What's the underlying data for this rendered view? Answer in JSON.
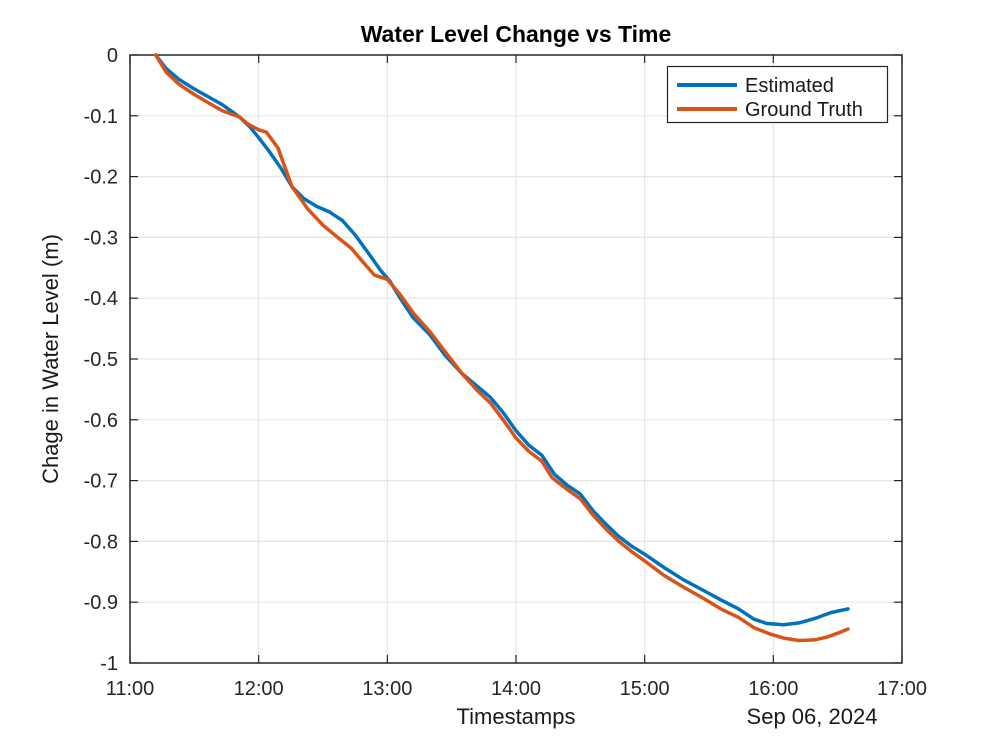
{
  "figure": {
    "background": "#ffffff",
    "axis_color": "#262626",
    "grid_color": "#e6e6e6"
  },
  "chart_data": {
    "type": "line",
    "title": "Water Level Change vs Time",
    "xlabel": "Timestamps",
    "ylabel": "Chage in Water Level (m)",
    "date_annotation": "Sep 06, 2024",
    "x_unit": "hours after 11:00 on Sep 06, 2024",
    "xlim": [
      0,
      6
    ],
    "ylim": [
      -1,
      0
    ],
    "grid": true,
    "x_ticks": {
      "values": [
        0,
        1,
        2,
        3,
        4,
        5,
        6
      ],
      "labels": [
        "11:00",
        "12:00",
        "13:00",
        "14:00",
        "15:00",
        "16:00",
        "17:00"
      ]
    },
    "y_ticks": {
      "values": [
        0,
        -0.1,
        -0.2,
        -0.3,
        -0.4,
        -0.5,
        -0.6,
        -0.7,
        -0.8,
        -0.9,
        -1
      ],
      "labels": [
        "0",
        "-0.1",
        "-0.2",
        "-0.3",
        "-0.4",
        "-0.5",
        "-0.6",
        "-0.7",
        "-0.8",
        "-0.9",
        "-1"
      ]
    },
    "legend": {
      "position": "northeast",
      "entries": [
        "Estimated",
        "Ground Truth"
      ]
    },
    "series": [
      {
        "name": "Estimated",
        "color": "#0072BD",
        "points": [
          [
            0.2,
            0.0
          ],
          [
            0.28,
            -0.022
          ],
          [
            0.38,
            -0.04
          ],
          [
            0.5,
            -0.056
          ],
          [
            0.62,
            -0.07
          ],
          [
            0.72,
            -0.082
          ],
          [
            0.8,
            -0.094
          ],
          [
            0.85,
            -0.102
          ],
          [
            0.93,
            -0.118
          ],
          [
            1.0,
            -0.136
          ],
          [
            1.08,
            -0.158
          ],
          [
            1.17,
            -0.185
          ],
          [
            1.26,
            -0.217
          ],
          [
            1.35,
            -0.236
          ],
          [
            1.45,
            -0.249
          ],
          [
            1.55,
            -0.258
          ],
          [
            1.65,
            -0.272
          ],
          [
            1.75,
            -0.296
          ],
          [
            1.85,
            -0.325
          ],
          [
            1.95,
            -0.355
          ],
          [
            2.02,
            -0.372
          ],
          [
            2.1,
            -0.4
          ],
          [
            2.2,
            -0.432
          ],
          [
            2.33,
            -0.46
          ],
          [
            2.45,
            -0.494
          ],
          [
            2.58,
            -0.524
          ],
          [
            2.7,
            -0.545
          ],
          [
            2.8,
            -0.563
          ],
          [
            2.9,
            -0.588
          ],
          [
            3.0,
            -0.618
          ],
          [
            3.1,
            -0.642
          ],
          [
            3.2,
            -0.658
          ],
          [
            3.3,
            -0.69
          ],
          [
            3.4,
            -0.708
          ],
          [
            3.5,
            -0.722
          ],
          [
            3.6,
            -0.75
          ],
          [
            3.7,
            -0.772
          ],
          [
            3.8,
            -0.792
          ],
          [
            3.9,
            -0.808
          ],
          [
            4.0,
            -0.821
          ],
          [
            4.15,
            -0.843
          ],
          [
            4.3,
            -0.863
          ],
          [
            4.45,
            -0.88
          ],
          [
            4.6,
            -0.897
          ],
          [
            4.73,
            -0.911
          ],
          [
            4.85,
            -0.928
          ],
          [
            4.95,
            -0.935
          ],
          [
            5.08,
            -0.937
          ],
          [
            5.2,
            -0.934
          ],
          [
            5.32,
            -0.927
          ],
          [
            5.45,
            -0.917
          ],
          [
            5.58,
            -0.911
          ]
        ]
      },
      {
        "name": "Ground Truth",
        "color": "#D95319",
        "points": [
          [
            0.2,
            0.0
          ],
          [
            0.28,
            -0.028
          ],
          [
            0.38,
            -0.048
          ],
          [
            0.5,
            -0.065
          ],
          [
            0.62,
            -0.08
          ],
          [
            0.72,
            -0.092
          ],
          [
            0.85,
            -0.102
          ],
          [
            0.92,
            -0.114
          ],
          [
            1.0,
            -0.123
          ],
          [
            1.06,
            -0.127
          ],
          [
            1.15,
            -0.153
          ],
          [
            1.26,
            -0.217
          ],
          [
            1.38,
            -0.253
          ],
          [
            1.5,
            -0.28
          ],
          [
            1.62,
            -0.301
          ],
          [
            1.72,
            -0.318
          ],
          [
            1.82,
            -0.343
          ],
          [
            1.9,
            -0.362
          ],
          [
            2.0,
            -0.369
          ],
          [
            2.1,
            -0.394
          ],
          [
            2.2,
            -0.424
          ],
          [
            2.33,
            -0.455
          ],
          [
            2.45,
            -0.488
          ],
          [
            2.58,
            -0.524
          ],
          [
            2.7,
            -0.552
          ],
          [
            2.8,
            -0.572
          ],
          [
            2.9,
            -0.6
          ],
          [
            3.0,
            -0.63
          ],
          [
            3.1,
            -0.652
          ],
          [
            3.2,
            -0.668
          ],
          [
            3.28,
            -0.695
          ],
          [
            3.4,
            -0.715
          ],
          [
            3.5,
            -0.73
          ],
          [
            3.6,
            -0.757
          ],
          [
            3.7,
            -0.78
          ],
          [
            3.8,
            -0.8
          ],
          [
            3.9,
            -0.817
          ],
          [
            4.0,
            -0.832
          ],
          [
            4.15,
            -0.856
          ],
          [
            4.3,
            -0.875
          ],
          [
            4.45,
            -0.893
          ],
          [
            4.6,
            -0.912
          ],
          [
            4.73,
            -0.925
          ],
          [
            4.85,
            -0.942
          ],
          [
            4.97,
            -0.952
          ],
          [
            5.08,
            -0.959
          ],
          [
            5.2,
            -0.963
          ],
          [
            5.32,
            -0.962
          ],
          [
            5.42,
            -0.957
          ],
          [
            5.5,
            -0.951
          ],
          [
            5.58,
            -0.944
          ]
        ]
      }
    ]
  }
}
